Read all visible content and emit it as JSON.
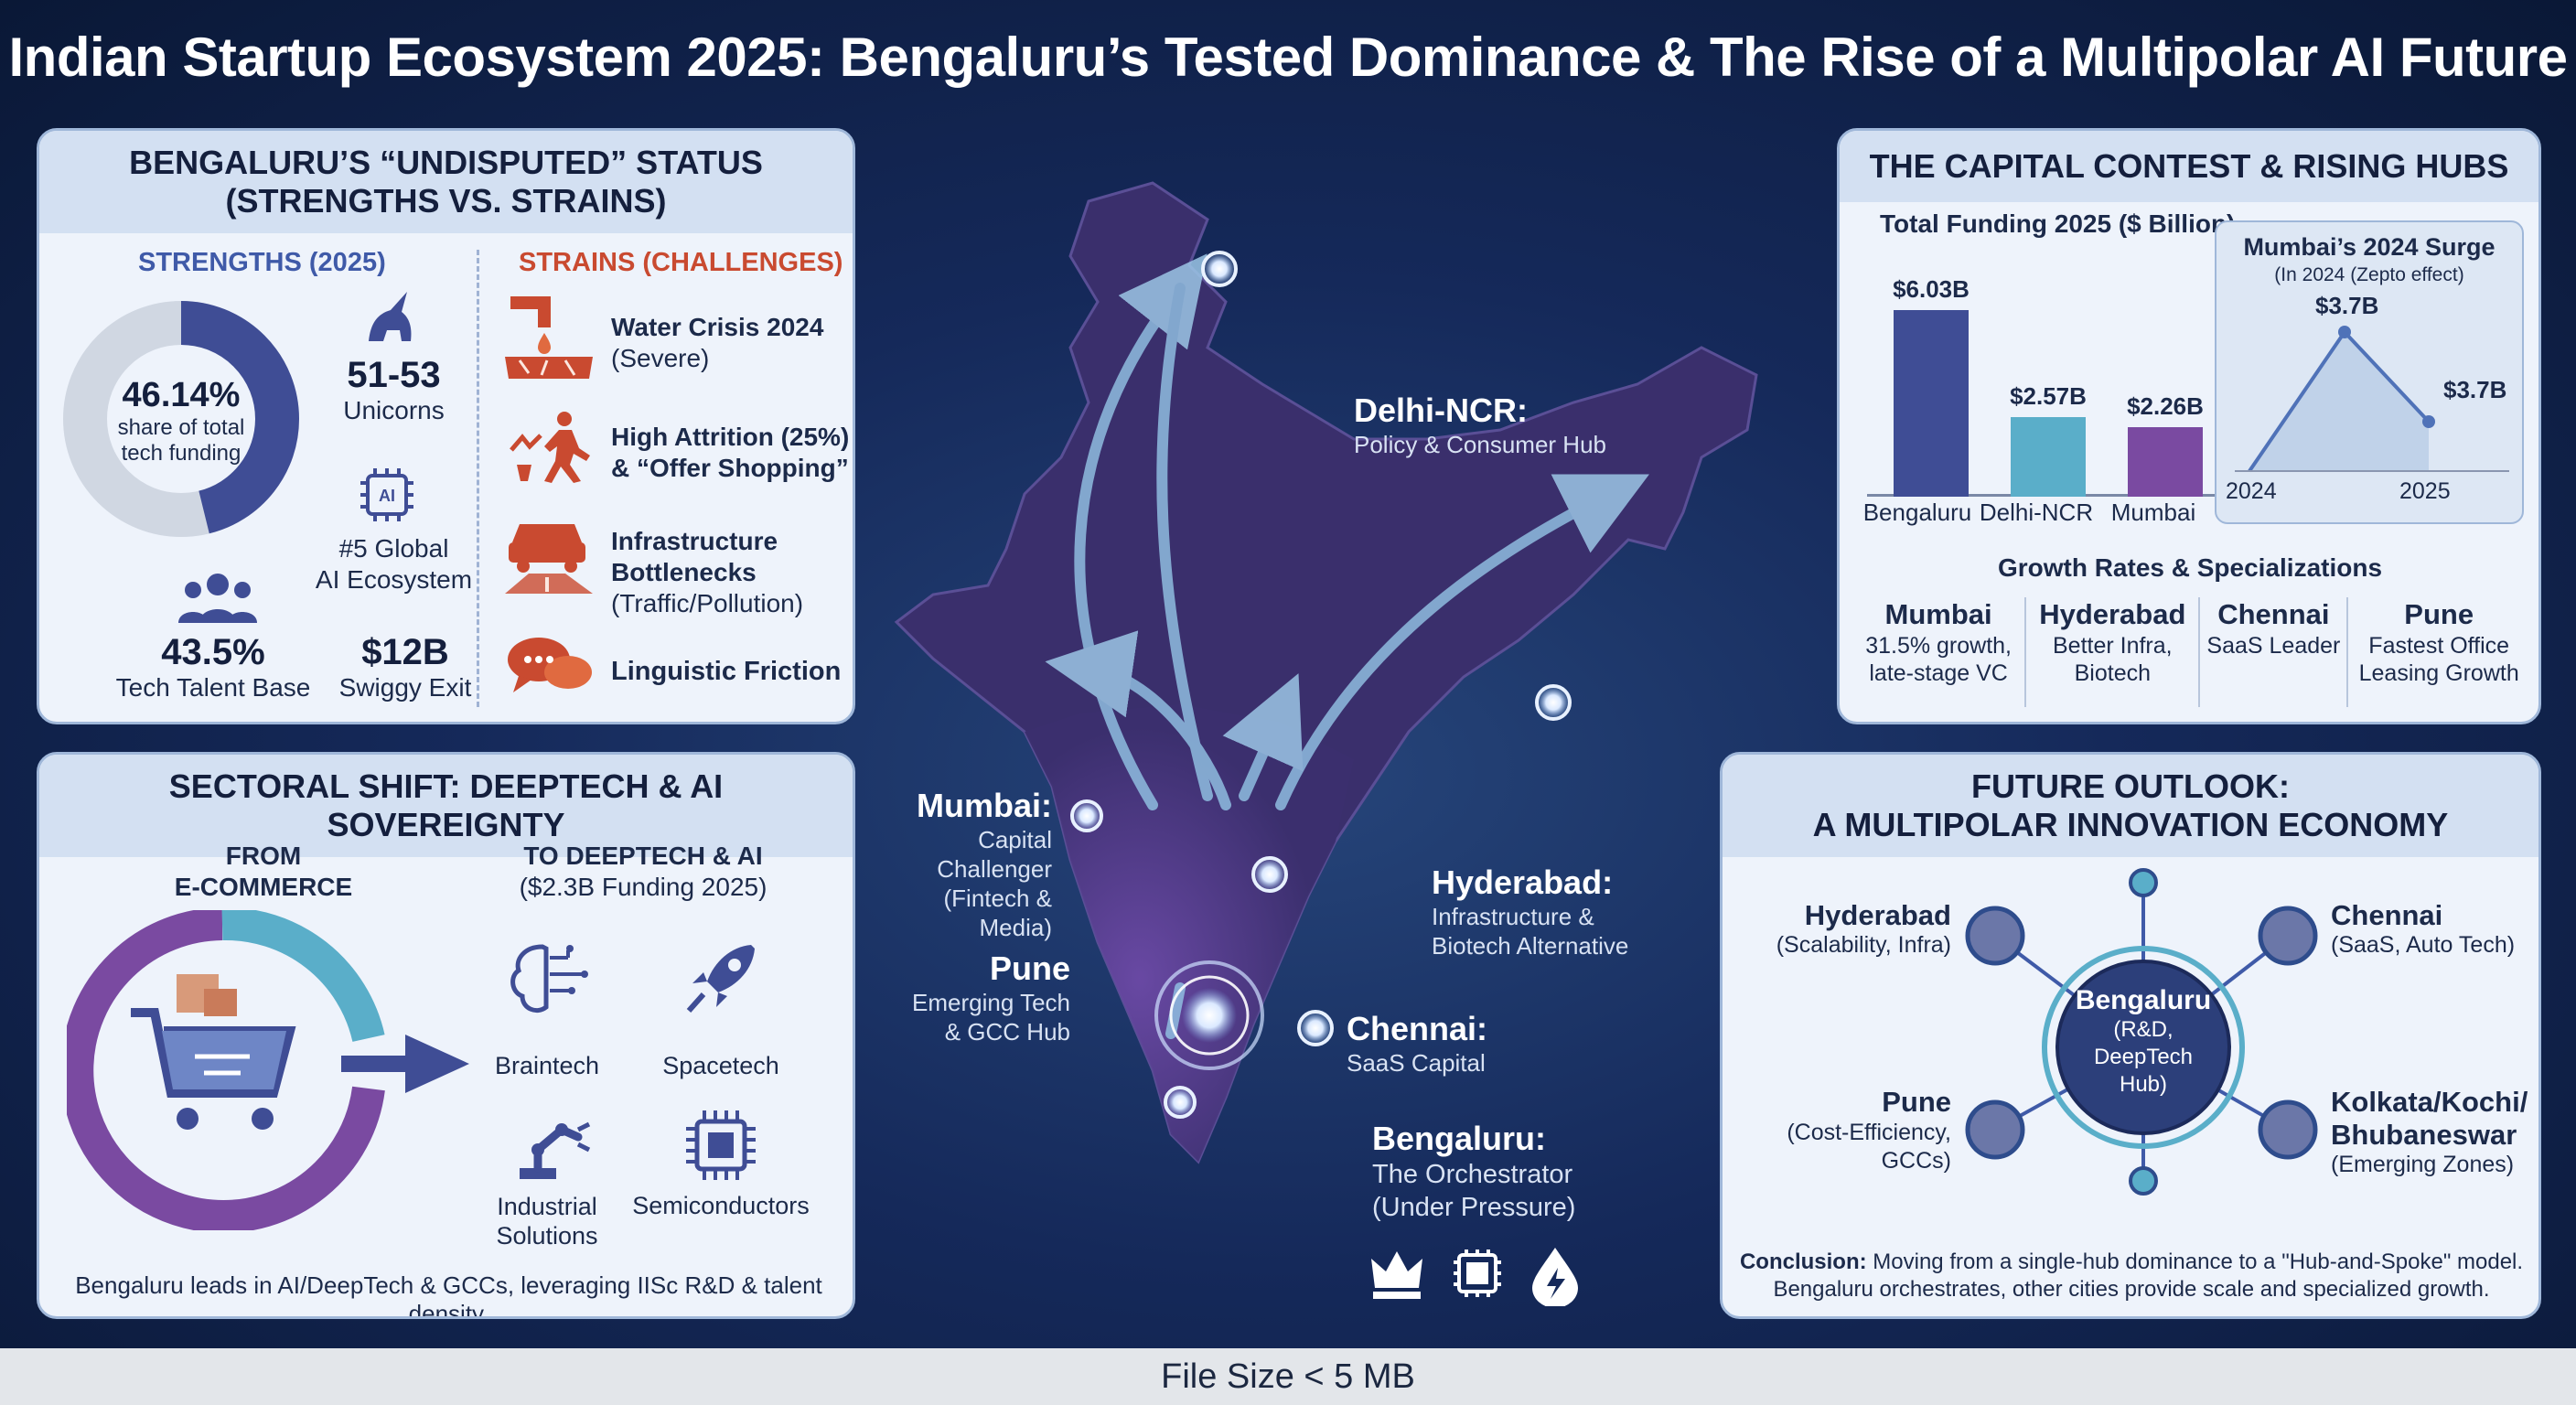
{
  "title": "Indian Startup Ecosystem 2025: Bengaluru’s Tested Dominance & The Rise of a Multipolar AI Future",
  "colors": {
    "navy": "#3f4d95",
    "teal": "#5aaec9",
    "purple": "#7a4aa1",
    "strain_red": "#c94a30",
    "bg": "#15295a"
  },
  "status_panel": {
    "heading_line1": "BENGALURU’S “UNDISPUTED” STATUS",
    "heading_line2": "(STRENGTHS VS. STRAINS)",
    "strengths_title": "STRENGTHS (2025)",
    "strains_title": "STRAINS (CHALLENGES)",
    "donut_value": "46.14%",
    "donut_share": 0.4614,
    "donut_caption_1": "share of total",
    "donut_caption_2": "tech funding",
    "unicorns_value": "51-53",
    "unicorns_label": "Unicorns",
    "ai_rank_1": "#5 Global",
    "ai_rank_2": "AI Ecosystem",
    "talent_value": "43.5%",
    "talent_label": "Tech Talent Base",
    "swiggy_value": "$12B",
    "swiggy_label": "Swiggy Exit",
    "strains": [
      {
        "icon": "water-crisis-icon",
        "title": "Water Crisis 2024",
        "sub": "(Severe)"
      },
      {
        "icon": "attrition-icon",
        "title": "High Attrition (25%)",
        "sub": "& “Offer Shopping”"
      },
      {
        "icon": "traffic-icon",
        "title": "Infrastructure",
        "title2": "Bottlenecks",
        "sub": "(Traffic/Pollution)"
      },
      {
        "icon": "speech-bubbles-icon",
        "title": "Linguistic Friction",
        "sub": ""
      }
    ]
  },
  "sector_panel": {
    "heading": "SECTORAL SHIFT: DEEPTECH & AI SOVEREIGNTY",
    "from_1": "FROM",
    "from_2": "E-COMMERCE",
    "to_1": "TO DEEPTECH & AI",
    "to_2": "($2.3B Funding 2025)",
    "sectors": [
      "Braintech",
      "Spacetech",
      "Industrial",
      "Solutions",
      "Semiconductors"
    ],
    "footer_note": "Bengaluru leads in AI/DeepTech & GCCs, leveraging IISc R&D & talent density."
  },
  "map": {
    "delhi": {
      "name": "Delhi-NCR:",
      "desc": "Policy & Consumer Hub"
    },
    "mumbai": {
      "name": "Mumbai:",
      "desc1": "Capital Challenger",
      "desc2": "(Fintech & Media)"
    },
    "pune": {
      "name": "Pune",
      "desc1": "Emerging Tech",
      "desc2": "& GCC Hub"
    },
    "hyderabad": {
      "name": "Hyderabad:",
      "desc1": "Infrastructure &",
      "desc2": "Biotech Alternative"
    },
    "chennai": {
      "name": "Chennai:",
      "desc": "SaaS Capital"
    },
    "bengaluru": {
      "name": "Bengaluru:",
      "desc1": "The Orchestrator",
      "desc2": "(Under Pressure)"
    },
    "icons": [
      "crown-icon",
      "chip-icon",
      "droplet-bolt-icon"
    ]
  },
  "capital_panel": {
    "heading": "THE CAPITAL CONTEST & RISING HUBS",
    "chart_title": "Total Funding 2025 ($ Billion)",
    "surge_title": "Mumbai’s 2024 Surge",
    "surge_sub": "(In 2024 (Zepto effect)",
    "growth_title": "Growth Rates & Specializations",
    "specs": [
      {
        "city": "Mumbai",
        "l1": "31.5% growth,",
        "l2": "late-stage VC"
      },
      {
        "city": "Hyderabad",
        "l1": "Better Infra,",
        "l2": "Biotech"
      },
      {
        "city": "Chennai",
        "l1": "SaaS Leader",
        "l2": ""
      },
      {
        "city": "Pune",
        "l1": "Fastest Office",
        "l2": "Leasing Growth"
      }
    ]
  },
  "chart_data": [
    {
      "type": "bar",
      "title": "Total Funding 2025 ($ Billion)",
      "categories": [
        "Bengaluru",
        "Delhi-NCR",
        "Mumbai"
      ],
      "values": [
        6.03,
        2.57,
        2.26
      ],
      "data_labels": [
        "$6.03B",
        "$2.57B",
        "$2.26B"
      ],
      "colors": [
        "#3f4d95",
        "#5aaec9",
        "#7a4aa1"
      ],
      "ylim": [
        0,
        6.5
      ]
    },
    {
      "type": "line",
      "title": "Mumbai’s 2024 Surge",
      "x": [
        "2024",
        "2025"
      ],
      "peak_label": "$3.7B",
      "end_label": "$3.7B"
    }
  ],
  "outlook_panel": {
    "heading_line1": "FUTURE OUTLOOK:",
    "heading_line2": "A MULTIPOLAR INNOVATION ECONOMY",
    "hub_name": "Bengaluru",
    "hub_desc1": "(R&D, DeepTech",
    "hub_desc2": "Hub)",
    "spokes": [
      {
        "name": "Hyderabad",
        "desc": "(Scalability, Infra)"
      },
      {
        "name": "Chennai",
        "desc": "(SaaS, Auto Tech)"
      },
      {
        "name": "Pune",
        "desc1": "(Cost-Efficiency,",
        "desc2": "GCCs)"
      },
      {
        "name": "Kolkata/Kochi/",
        "name2": "Bhubaneswar",
        "desc": "(Emerging Zones)"
      }
    ],
    "conclusion_bold": "Conclusion:",
    "conclusion_text1": "Moving from a single-hub dominance to a \"Hub-and-Spoke\" model.",
    "conclusion_text2": "Bengaluru orchestrates, other cities provide scale and specialized growth."
  },
  "footer": "File Size < 5 MB"
}
